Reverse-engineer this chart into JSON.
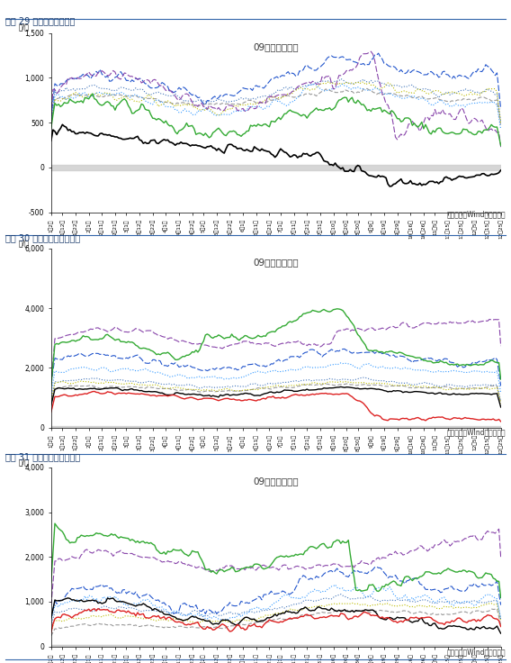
{
  "chart1": {
    "title": "图表 29 活跃合约豆棕价差",
    "subtitle": "09合约豆棕价差",
    "ylabel": "元/吨",
    "ylim": [
      -500,
      1500
    ],
    "yticks": [
      -500,
      0,
      500,
      1000,
      1500
    ],
    "source": "数据来源：Wind、国元期货"
  },
  "chart2": {
    "title": "图表 30 活跃合约菜棕油价差",
    "subtitle": "09合约菜棕价差",
    "ylabel": "元/吨",
    "ylim": [
      0,
      6000
    ],
    "yticks": [
      0,
      2000,
      4000,
      6000
    ],
    "source": "数据来源：Wind、国元期货"
  },
  "chart3": {
    "title": "图表 31 活跃合约豆菜油价差",
    "subtitle": "09合约菜豆价差",
    "ylabel": "元/吨",
    "ylim": [
      0,
      4000
    ],
    "yticks": [
      0,
      1000,
      2000,
      3000,
      4000
    ],
    "source": "数据来源：Wind、国元期货"
  },
  "colors": {
    "2016": "#1f77b4",
    "2017": "#aaaaaa",
    "2018": "#bcbd22",
    "2019": "#4477bb",
    "2020": "#1f77b4",
    "2021": "#9467bd",
    "2022": "#2ca02c",
    "2023": "#2ca02c",
    "2024_black": "#000000",
    "2024_red": "#d62728"
  },
  "bg_zero_color": "#cccccc",
  "title_color": "#1a3a6b",
  "header_bg": "#dce6f1",
  "n_points": 240
}
